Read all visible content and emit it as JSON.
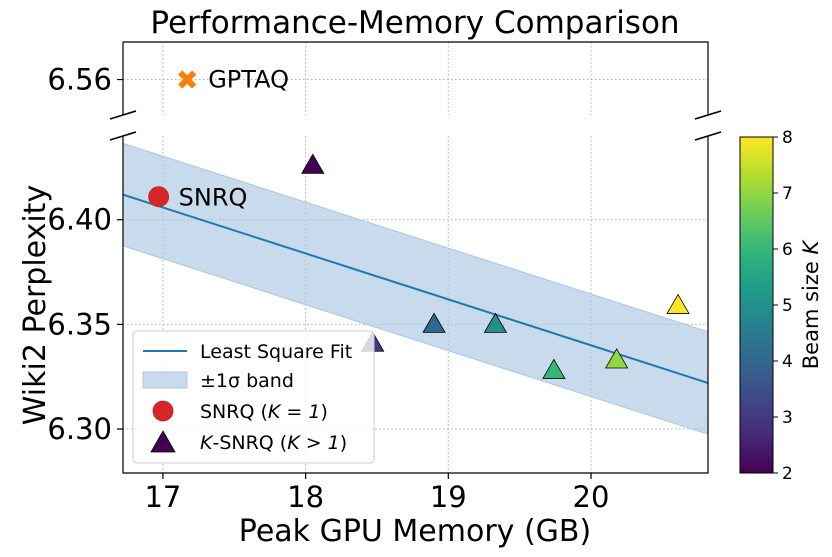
{
  "chart_data": {
    "type": "scatter",
    "title": "Performance-Memory Comparison",
    "xlabel": "Peak GPU Memory (GB)",
    "ylabel": "Wiki2 Perplexity",
    "xlim": [
      16.72,
      20.82
    ],
    "ylim_bottom": [
      6.279,
      6.44
    ],
    "ylim_top": [
      6.543,
      6.578
    ],
    "xticks": [
      "17",
      "18",
      "19",
      "20"
    ],
    "xtick_values": [
      17,
      18,
      19,
      20
    ],
    "yticks_bottom": [
      "6.30",
      "6.35",
      "6.40"
    ],
    "ytick_values_bottom": [
      6.3,
      6.35,
      6.4
    ],
    "yticks_top": [
      "6.56"
    ],
    "ytick_values_top": [
      6.56
    ],
    "grid": true,
    "fit_line": {
      "name": "Least Square Fit",
      "x0": 16.72,
      "y0": 6.412,
      "x1": 20.82,
      "y1": 6.322,
      "color": "#1f77b4"
    },
    "band": {
      "name": "±1σ band",
      "offset": 0.0245,
      "color": "#aac8e2"
    },
    "gptaq": {
      "label": "GPTAQ",
      "x": 17.17,
      "y": 6.56,
      "color": "#ff7f0e"
    },
    "snrq": {
      "label": "SNRQ",
      "x": 16.97,
      "y": 6.411,
      "color": "#d62728"
    },
    "ksnrq": [
      {
        "x": 18.05,
        "y": 6.426,
        "k": 2
      },
      {
        "x": 18.47,
        "y": 6.341,
        "k": 3
      },
      {
        "x": 18.9,
        "y": 6.35,
        "k": 4
      },
      {
        "x": 19.33,
        "y": 6.35,
        "k": 5
      },
      {
        "x": 19.74,
        "y": 6.328,
        "k": 6
      },
      {
        "x": 20.18,
        "y": 6.333,
        "k": 7
      },
      {
        "x": 20.61,
        "y": 6.359,
        "k": 8
      }
    ],
    "legend": {
      "position": "lower-left",
      "fit_label": "Least Square Fit",
      "band_label": "±1σ band",
      "snrq_label_a": "SNRQ (",
      "snrq_label_b": "K = 1",
      "snrq_label_c": ")",
      "ksnrq_label_a": "K",
      "ksnrq_label_b": "-SNRQ (",
      "ksnrq_label_c": "K > 1",
      "ksnrq_label_d": ")",
      "snrq_marker_color": "#d62728",
      "ksnrq_marker_color": "#440154"
    },
    "colorbar": {
      "label_main": "Beam size ",
      "label_var": "K",
      "min": 2,
      "max": 8,
      "ticks": [
        "2",
        "3",
        "4",
        "5",
        "6",
        "7",
        "8"
      ],
      "tick_values": [
        2,
        3,
        4,
        5,
        6,
        7,
        8
      ],
      "colormap": "viridis",
      "stops": [
        "#440154",
        "#482878",
        "#3e4989",
        "#31688e",
        "#26828e",
        "#1f9e89",
        "#35b779",
        "#6ece58",
        "#b5de2b",
        "#fde725"
      ]
    }
  }
}
